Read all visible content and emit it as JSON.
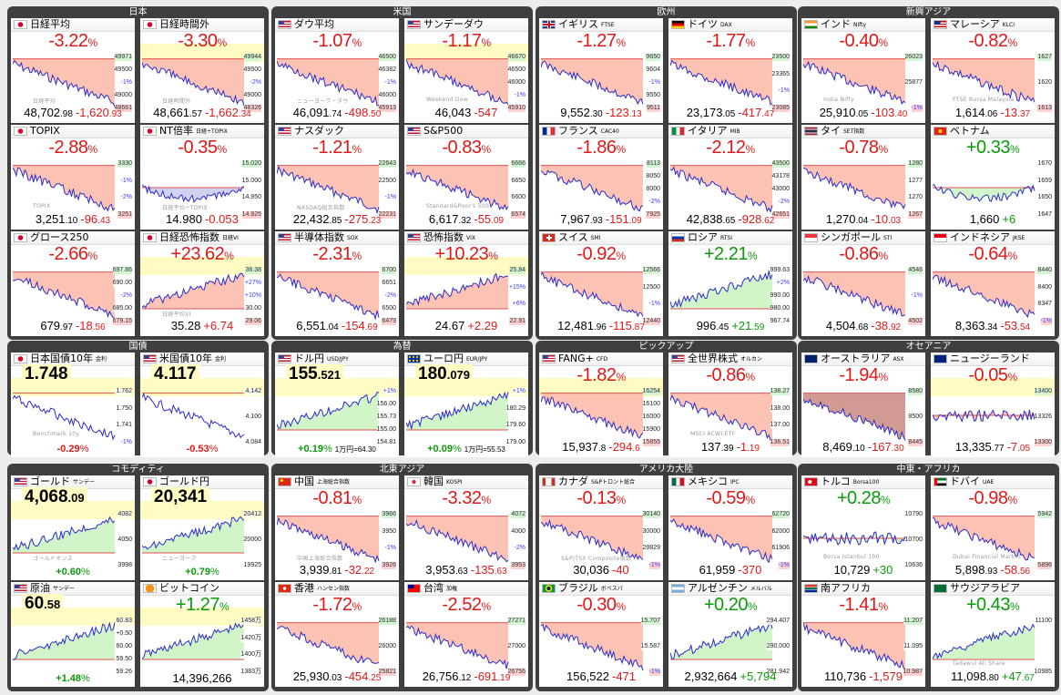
{
  "groups": [
    {
      "id": "jp",
      "title": "日本"
    },
    {
      "id": "us",
      "title": "米国"
    },
    {
      "id": "eu",
      "title": "欧州"
    },
    {
      "id": "asia",
      "title": "新興アジア"
    },
    {
      "id": "bond",
      "title": "国債"
    },
    {
      "id": "fx",
      "title": "為替"
    },
    {
      "id": "pick",
      "title": "ピックアップ"
    },
    {
      "id": "oce",
      "title": "オセアニア"
    },
    {
      "id": "com",
      "title": "コモディティ"
    },
    {
      "id": "ne",
      "title": "北東アジア"
    },
    {
      "id": "am",
      "title": "アメリカ大陸"
    },
    {
      "id": "me",
      "title": "中東・アフリカ"
    }
  ],
  "tiles": [
    {
      "name": "日経平均",
      "sub": "",
      "flag": "jp",
      "pct": "-3.22",
      "pctColor": "neg",
      "price": "48,702",
      "dec": ".98",
      "chg": "-1,620",
      "chgDec": ".93",
      "labels": [
        "49971",
        "49500",
        "-1%",
        "49000",
        "48661"
      ],
      "wm": "日経平均",
      "level": 0.78,
      "trend": "down",
      "ytype": "nmrl"
    },
    {
      "name": "日経時間外",
      "sub": "",
      "flag": "jp",
      "pct": "-3.30",
      "pctColor": "neg",
      "price": "48,661",
      "dec": ".57",
      "chg": "-1,662",
      "chgDec": ".34",
      "labels": [
        "49944",
        "49500",
        "-2%",
        "49000",
        "48326"
      ],
      "wm": "日経時間外",
      "level": 0.3,
      "trend": "down",
      "ytype": "hl"
    },
    {
      "name": "ダウ平均",
      "sub": "",
      "flag": "us",
      "pct": "-1.07",
      "pctColor": "neg",
      "price": "46,091",
      "dec": ".74",
      "chg": "-498",
      "chgDec": ".50",
      "labels": [
        "46500",
        "46382",
        "-1%",
        "46000",
        "45913"
      ],
      "wm": "ニューヨーク・ダウ",
      "level": 0.12,
      "trend": "down",
      "ytype": "nmrl"
    },
    {
      "name": "サンデーダウ",
      "sub": "",
      "flag": "us",
      "pct": "-1.17",
      "pctColor": "neg",
      "price": "46,043",
      "dec": "",
      "chg": "-547",
      "chgDec": "",
      "labels": [
        "46670",
        "46500",
        "46000",
        "-1%",
        "45910"
      ],
      "wm": "Weekend Dow",
      "level": 0.1,
      "trend": "down",
      "ytype": "hl"
    },
    {
      "name": "イギリス",
      "sub": "FTSE",
      "flag": "uk",
      "pct": "-1.27",
      "pctColor": "neg",
      "price": "9,552",
      "dec": ".30",
      "chg": "-123",
      "chgDec": ".13",
      "labels": [
        "9650",
        "9604",
        "-1%",
        "9550",
        "9511"
      ],
      "wm": "",
      "level": 0.05,
      "trend": "down",
      "ytype": "nmrl"
    },
    {
      "name": "ドイツ",
      "sub": "DAX",
      "flag": "de",
      "pct": "-1.77",
      "pctColor": "neg",
      "price": "23,173",
      "dec": ".05",
      "chg": "-417",
      "chgDec": ".47",
      "labels": [
        "23500",
        "23365",
        "-1%",
        "23085"
      ],
      "wm": "",
      "level": 0.05,
      "trend": "down",
      "ytype": "nmrl"
    },
    {
      "name": "インド",
      "sub": "Nifty",
      "flag": "in",
      "pct": "-0.40",
      "pctColor": "neg",
      "price": "25,910",
      "dec": ".05",
      "chg": "-103",
      "chgDec": ".40",
      "labels": [
        "26023",
        "25877",
        "-1%"
      ],
      "wm": "India Nifty",
      "level": 0.05,
      "trend": "down",
      "ytype": "nmrl"
    },
    {
      "name": "マレーシア",
      "sub": "KLCI",
      "flag": "my",
      "pct": "-0.82",
      "pctColor": "neg",
      "price": "1,614",
      "dec": ".06",
      "chg": "-13",
      "chgDec": ".37",
      "labels": [
        "1627",
        "1620",
        "1613"
      ],
      "wm": "FTSE Bursa Malaysia",
      "level": 0.05,
      "trend": "down",
      "ytype": "nmrl"
    },
    {
      "name": "TOPIX",
      "sub": "",
      "flag": "jp",
      "pct": "-2.88",
      "pctColor": "neg",
      "price": "3,251",
      "dec": ".10",
      "chg": "-96",
      "chgDec": ".43",
      "labels": [
        "3330",
        "-1%",
        "-2%",
        "3251"
      ],
      "wm": "TOPIX",
      "level": 0.05,
      "trend": "down",
      "ytype": "nmrl"
    },
    {
      "name": "NT倍率",
      "sub": "日経÷TOPIX",
      "flag": "jp",
      "pct": "-0.35",
      "pctColor": "neg",
      "price": "14.980",
      "dec": "",
      "chg": "-0.053",
      "chgDec": "",
      "labels": [
        "15.020",
        "15.000",
        "14.950",
        "14.925"
      ],
      "wm": "日経平均÷TOPIX",
      "level": 0.15,
      "trend": "u",
      "ytype": "blue"
    },
    {
      "name": "ナスダック",
      "sub": "",
      "flag": "us",
      "pct": "-1.21",
      "pctColor": "neg",
      "price": "22,432",
      "dec": ".85",
      "chg": "-275",
      "chgDec": ".23",
      "labels": [
        "22643",
        "22500",
        "-1%",
        "22231"
      ],
      "wm": "NASDAQ総合指数",
      "level": 0.05,
      "trend": "down",
      "ytype": "nmrl"
    },
    {
      "name": "S&P500",
      "sub": "",
      "flag": "us",
      "pct": "-0.83",
      "pctColor": "neg",
      "price": "6,617",
      "dec": ".32",
      "chg": "-55",
      "chgDec": ".09",
      "labels": [
        "6666",
        "6650",
        "6600",
        "6574"
      ],
      "wm": "Standard&Poor's 500",
      "level": 0.05,
      "trend": "down",
      "ytype": "nmrl"
    },
    {
      "name": "フランス",
      "sub": "CAC40",
      "flag": "fr",
      "pct": "-1.86",
      "pctColor": "neg",
      "price": "7,967",
      "dec": ".93",
      "chg": "-151",
      "chgDec": ".09",
      "labels": [
        "8113",
        "8050",
        "8000",
        "-2%",
        "7925"
      ],
      "wm": "",
      "level": 0.05,
      "trend": "down",
      "ytype": "nmrl"
    },
    {
      "name": "イタリア",
      "sub": "MIB",
      "flag": "it",
      "pct": "-2.12",
      "pctColor": "neg",
      "price": "42,838",
      "dec": ".65",
      "chg": "-928",
      "chgDec": ".62",
      "labels": [
        "43500",
        "43178",
        "43000",
        "-2%",
        "42651"
      ],
      "wm": "",
      "level": 0.05,
      "trend": "down",
      "ytype": "nmrl"
    },
    {
      "name": "タイ",
      "sub": "SET指数",
      "flag": "th",
      "pct": "-0.78",
      "pctColor": "neg",
      "price": "1,270",
      "dec": ".04",
      "chg": "-10",
      "chgDec": ".03",
      "labels": [
        "1280",
        "1277",
        "1270",
        "1267"
      ],
      "wm": "",
      "level": 0.05,
      "trend": "down",
      "ytype": "nmrl"
    },
    {
      "name": "ベトナム",
      "sub": "",
      "flag": "vn",
      "pct": "+0.33",
      "pctColor": "pos",
      "price": "1,660",
      "dec": "",
      "chg": "+6",
      "chgDec": "",
      "labels": [
        "1670",
        "1659",
        "1650",
        "1647"
      ],
      "wm": "",
      "level": 0.7,
      "trend": "u",
      "ytype": "green"
    },
    {
      "name": "グロース250",
      "sub": "",
      "flag": "jp",
      "pct": "-2.66",
      "pctColor": "neg",
      "price": "679",
      "dec": ".97",
      "chg": "-18",
      "chgDec": ".56",
      "labels": [
        "697.86",
        "690.00",
        "-2%",
        "685.00",
        "679.15"
      ],
      "wm": "",
      "level": 0.05,
      "trend": "down",
      "ytype": "nmrl"
    },
    {
      "name": "日経恐怖指数",
      "sub": "日経VI",
      "flag": "jp",
      "pct": "+23.62",
      "pctColor": "neg",
      "price": "35.28",
      "dec": "",
      "chg": "+6.74",
      "chgDec": "",
      "labels": [
        "36.38",
        "+27%",
        "+10%",
        "30.00",
        "29.06"
      ],
      "wm": "日経平均VI",
      "level": 0.9,
      "trend": "up",
      "ytype": "nmrl"
    },
    {
      "name": "半導体指数",
      "sub": "SOX",
      "flag": "us",
      "pct": "-2.31",
      "pctColor": "neg",
      "price": "6,551",
      "dec": ".04",
      "chg": "-154",
      "chgDec": ".69",
      "labels": [
        "6700",
        "6651",
        "-2%",
        "6500",
        "6479"
      ],
      "wm": "",
      "level": 0.05,
      "trend": "down",
      "ytype": "nmrl"
    },
    {
      "name": "恐怖指数",
      "sub": "VIX",
      "flag": "us",
      "pct": "+10.23",
      "pctColor": "neg",
      "price": "24.67",
      "dec": "",
      "chg": "+2.29",
      "chgDec": "",
      "labels": [
        "25.84",
        "+15%",
        "+6%",
        "22.91"
      ],
      "wm": "",
      "level": 0.9,
      "trend": "up",
      "ytype": "nmrl"
    },
    {
      "name": "スイス",
      "sub": "SMI",
      "flag": "ch",
      "pct": "-0.92",
      "pctColor": "neg",
      "price": "12,481",
      "dec": ".96",
      "chg": "-115",
      "chgDec": ".87",
      "labels": [
        "12566",
        "12500",
        "-1%",
        "12440"
      ],
      "wm": "",
      "level": 0.05,
      "trend": "down",
      "ytype": "nmrl"
    },
    {
      "name": "ロシア",
      "sub": "RTSI",
      "flag": "ru",
      "pct": "+2.21",
      "pctColor": "pos",
      "price": "996",
      "dec": ".45",
      "chg": "+21",
      "chgDec": ".59",
      "labels": [
        "999.63",
        "+2%",
        "990.00",
        "980.00",
        "967.74"
      ],
      "wm": "",
      "level": 0.95,
      "trend": "up",
      "ytype": "green"
    },
    {
      "name": "シンガポール",
      "sub": "STI",
      "flag": "sg",
      "pct": "-0.86",
      "pctColor": "neg",
      "price": "4,504",
      "dec": ".68",
      "chg": "-38",
      "chgDec": ".92",
      "labels": [
        "4546",
        "-1%",
        "4502"
      ],
      "wm": "",
      "level": 0.05,
      "trend": "down",
      "ytype": "nmrl"
    },
    {
      "name": "インドネシア",
      "sub": "JKSE",
      "flag": "id",
      "pct": "-0.64",
      "pctColor": "neg",
      "price": "8,363",
      "dec": ".34",
      "chg": "-53",
      "chgDec": ".54",
      "labels": [
        "8440",
        "8400",
        "8347",
        "-1%"
      ],
      "wm": "",
      "level": 0.05,
      "trend": "down",
      "ytype": "nmrl"
    },
    {
      "name": "日本国債10年",
      "sub": "金利",
      "flag": "jp",
      "big": "1.748",
      "bigDec": "",
      "pct": "-0.29",
      "pctColor": "neg",
      "rate": "",
      "labels": [
        "1.762",
        "1.750",
        "1.741",
        "-1%"
      ],
      "wm": "Benchmark 10y",
      "level": 0.3,
      "trend": "down",
      "ytype": "bond"
    },
    {
      "name": "米国債10年",
      "sub": "金利",
      "flag": "us",
      "big": "4.117",
      "bigDec": "",
      "pct": "-0.53",
      "pctColor": "neg",
      "rate": "",
      "labels": [
        "4.142",
        "4.100",
        "4.084"
      ],
      "wm": "",
      "level": 0.3,
      "trend": "down",
      "ytype": "bond"
    },
    {
      "name": "ドル円",
      "sub": "USD/JPY",
      "flag": "us",
      "big": "155",
      "bigDec": ".521",
      "pct": "+0.19",
      "pctColor": "pos",
      "rate": "1万円=64.30",
      "labels": [
        "+1%",
        "156.00",
        "155.73",
        "155.00",
        "154.81"
      ],
      "wm": "",
      "level": 0.7,
      "trend": "up",
      "ytype": "fx"
    },
    {
      "name": "ユーロ円",
      "sub": "EUR/JPY",
      "flag": "eu",
      "big": "180",
      "bigDec": ".079",
      "pct": "+0.09",
      "pctColor": "pos",
      "rate": "1万円=55.53",
      "labels": [
        "+1%",
        "180.29",
        "179.60",
        "179.00"
      ],
      "wm": "",
      "level": 0.7,
      "trend": "up",
      "ytype": "fx"
    },
    {
      "name": "FANG+",
      "sub": "CFD",
      "flag": "us",
      "pct": "-1.82",
      "pctColor": "neg",
      "price": "15,937",
      "dec": ".8",
      "chg": "-294",
      "chgDec": ".6",
      "labels": [
        "16254",
        "16100",
        "16000",
        "15900",
        "15855"
      ],
      "wm": "",
      "level": 0.05,
      "trend": "down",
      "ytype": "hl"
    },
    {
      "name": "全世界株式",
      "sub": "オルカン",
      "flag": "us",
      "pct": "-0.86",
      "pctColor": "neg",
      "price": "137",
      "dec": ".39",
      "chg": "-1",
      "chgDec": ".19",
      "labels": [
        "138.27",
        "138.00",
        "137.00",
        "136.51"
      ],
      "wm": "MSCI ACWI ETF",
      "level": 0.05,
      "trend": "down",
      "ytype": "nmrl"
    },
    {
      "name": "オーストラリア",
      "sub": "ASX",
      "flag": "au",
      "pct": "-1.94",
      "pctColor": "neg",
      "price": "8,469",
      "dec": ".10",
      "chg": "-167",
      "chgDec": ".30",
      "labels": [
        "8580",
        "8500",
        "8445"
      ],
      "wm": "",
      "level": 0.05,
      "trend": "down",
      "ytype": "dim"
    },
    {
      "name": "ニュージーランド",
      "sub": "",
      "flag": "nz",
      "pct": "-0.05",
      "pctColor": "neg",
      "price": "13,335",
      "dec": ".77",
      "chg": "-7",
      "chgDec": ".05",
      "labels": [
        "13400",
        "13326",
        "13300"
      ],
      "wm": "",
      "level": 0.4,
      "trend": "flat",
      "ytype": "hl"
    },
    {
      "name": "ゴールド",
      "sub": "サンデー",
      "flag": "us",
      "big": "4,068",
      "bigDec": ".09",
      "pct": "+0.60",
      "pctColor": "pos",
      "rate": "",
      "labels": [
        "4082",
        "4050",
        "3998"
      ],
      "wm": "ゴールドオンス",
      "level": 0.6,
      "trend": "up",
      "ytype": "fx"
    },
    {
      "name": "ゴールド円",
      "sub": "",
      "flag": "jp",
      "big": "20,341",
      "bigDec": "",
      "pct": "+0.79",
      "pctColor": "pos",
      "rate": "",
      "labels": [
        "20412",
        "20000",
        "19925"
      ],
      "wm": "ニューヨーク",
      "level": 0.6,
      "trend": "up",
      "ytype": "fx"
    },
    {
      "name": "中国",
      "sub": "上海総合指数",
      "flag": "cn",
      "pct": "-0.81",
      "pctColor": "neg",
      "price": "3,939",
      "dec": ".81",
      "chg": "-32",
      "chgDec": ".22",
      "labels": [
        "3966",
        "3950",
        "-1%",
        "3926"
      ],
      "wm": "中国上海総合指数",
      "level": 0.05,
      "trend": "down",
      "ytype": "nmrl"
    },
    {
      "name": "韓国",
      "sub": "KOSPI",
      "flag": "kr",
      "pct": "-3.32",
      "pctColor": "neg",
      "price": "3,953",
      "dec": ".63",
      "chg": "-135",
      "chgDec": ".63",
      "labels": [
        "4072",
        "4000",
        "-2%",
        "3953"
      ],
      "wm": "",
      "level": 0.05,
      "trend": "down",
      "ytype": "nmrl"
    },
    {
      "name": "カナダ",
      "sub": "S&Pトロント総合",
      "flag": "ca",
      "pct": "-0.13",
      "pctColor": "neg",
      "price": "30,036",
      "dec": "",
      "chg": "-40",
      "chgDec": "",
      "labels": [
        "30140",
        "30000",
        "29829",
        "-1%"
      ],
      "wm": "S&P/TSX Composite指数",
      "level": 0.3,
      "trend": "down",
      "ytype": "nmrl"
    },
    {
      "name": "メキシコ",
      "sub": "IPC",
      "flag": "mx",
      "pct": "-0.59",
      "pctColor": "neg",
      "price": "61,959",
      "dec": "",
      "chg": "-370",
      "chgDec": "",
      "labels": [
        "62720",
        "62000",
        "61906",
        "-1%"
      ],
      "wm": "",
      "level": 0.05,
      "trend": "down",
      "ytype": "nmrl"
    },
    {
      "name": "トルコ",
      "sub": "Borsa100",
      "flag": "tr",
      "pct": "+0.28",
      "pctColor": "pos",
      "price": "10,729",
      "dec": "",
      "chg": "+30",
      "chgDec": "",
      "labels": [
        "10790",
        "10700",
        "10636"
      ],
      "wm": "Borsa Istanbul 100",
      "level": 0.4,
      "trend": "flat",
      "ytype": "green"
    },
    {
      "name": "ドバイ",
      "sub": "UAE",
      "flag": "ae",
      "pct": "-0.98",
      "pctColor": "neg",
      "price": "5,898",
      "dec": ".93",
      "chg": "-58",
      "chgDec": ".56",
      "labels": [
        "5942",
        "5896"
      ],
      "wm": "Dubai Financial Market",
      "level": 0.05,
      "trend": "down",
      "ytype": "nmrl"
    },
    {
      "name": "原油",
      "sub": "サンデー",
      "flag": "us",
      "big": "60",
      "bigDec": ".58",
      "pct": "+1.48",
      "pctColor": "pos",
      "rate": "",
      "labels": [
        "60.83",
        "+0.50",
        "60.00",
        "59.50",
        "59.26"
      ],
      "wm": "",
      "level": 0.6,
      "trend": "up",
      "ytype": "fx"
    },
    {
      "name": "ビットコイン",
      "sub": "",
      "flag": "btc",
      "pct": "+1.27",
      "pctColor": "pos",
      "big2": "14,396,266",
      "labels": [
        "1458万",
        "1420万",
        "1400万",
        "1383万"
      ],
      "wm": "",
      "level": 0.7,
      "trend": "up",
      "ytype": "green"
    },
    {
      "name": "香港",
      "sub": "ハンセン指数",
      "flag": "hk",
      "pct": "-1.72",
      "pctColor": "neg",
      "price": "25,930",
      "dec": ".03",
      "chg": "-454",
      "chgDec": ".25",
      "labels": [
        "26188",
        "26000",
        "25821"
      ],
      "wm": "",
      "level": 0.05,
      "trend": "down",
      "ytype": "nmrl"
    },
    {
      "name": "台湾",
      "sub": "加権",
      "flag": "tw",
      "pct": "-2.52",
      "pctColor": "neg",
      "price": "26,756",
      "dec": ".12",
      "chg": "-691",
      "chgDec": ".19",
      "labels": [
        "27271",
        "27000",
        "26756"
      ],
      "wm": "",
      "level": 0.05,
      "trend": "down",
      "ytype": "nmrl"
    },
    {
      "name": "ブラジル",
      "sub": "ボベスパ",
      "flag": "br",
      "pct": "-0.30",
      "pctColor": "neg",
      "price": "156,522",
      "dec": "",
      "chg": "-471",
      "chgDec": "",
      "labels": [
        "15.707",
        "15.587",
        "-1%"
      ],
      "wm": "",
      "level": 0.3,
      "trend": "down",
      "ytype": "nmrl"
    },
    {
      "name": "アルゼンチン",
      "sub": "メルバル",
      "flag": "ar",
      "pct": "+0.20",
      "pctColor": "pos",
      "price": "2,932,664",
      "dec": "",
      "chg": "+5,794",
      "chgDec": "",
      "labels": [
        "294.407",
        "290.000",
        "281.942"
      ],
      "wm": "",
      "level": 0.6,
      "trend": "up",
      "ytype": "green"
    },
    {
      "name": "南アフリカ",
      "sub": "",
      "flag": "za",
      "pct": "-1.41",
      "pctColor": "neg",
      "price": "110,736",
      "dec": "",
      "chg": "-1,579",
      "chgDec": "",
      "labels": [
        "11.207",
        "11.095",
        "10.987"
      ],
      "wm": "",
      "level": 0.05,
      "trend": "down",
      "ytype": "nmrl"
    },
    {
      "name": "サウジアラビア",
      "sub": "",
      "flag": "sa",
      "pct": "+0.43",
      "pctColor": "pos",
      "price": "11,098",
      "dec": ".80",
      "chg": "+47",
      "chgDec": ".67",
      "labels": [
        "11100",
        "10985"
      ],
      "wm": "Tadawul All Share",
      "level": 0.6,
      "trend": "up",
      "ytype": "green"
    }
  ],
  "colors": {
    "up": "#0a9a0a",
    "down": "#e01818",
    "fillDown": "#fcb8a8",
    "fillUp": "#c9f2c0",
    "line": "#2c2ccc",
    "groupBg": "#3f3f3f"
  }
}
